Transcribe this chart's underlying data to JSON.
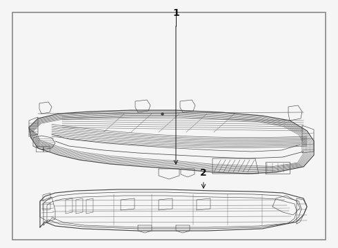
{
  "background_color": "#f5f5f5",
  "border_color": "#555555",
  "line_color": "#444444",
  "callout_1_label": "1",
  "callout_2_label": "2",
  "border_lw": 1.2,
  "part_lw": 0.55,
  "fig_width": 4.9,
  "fig_height": 3.6
}
